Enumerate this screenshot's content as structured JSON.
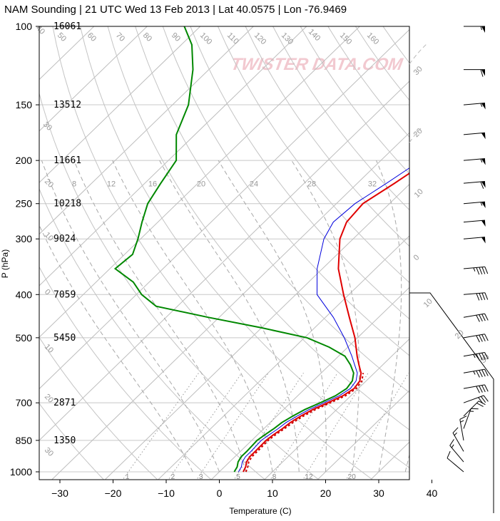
{
  "chart_data": {
    "type": "line",
    "title": "NAM Sounding | 21 UTC Wed 13 Feb 2013 | Lat 40.0575 | Lon -76.9469",
    "xlabel": "Temperature (C)",
    "ylabel": "P (hPa)",
    "xlim": [
      -34,
      40
    ],
    "x_ticks": [
      -30,
      -20,
      -10,
      0,
      10,
      20,
      30,
      40
    ],
    "y_scale": "log",
    "ylim": [
      1050,
      100
    ],
    "pressure_levels": [
      100,
      150,
      200,
      250,
      300,
      400,
      500,
      700,
      850,
      1000
    ],
    "height_labels": [
      "16061",
      "13512",
      "11661",
      "10218",
      "9024",
      "7059",
      "5450",
      "2871",
      "1350"
    ],
    "height_levels": [
      100,
      150,
      200,
      250,
      300,
      400,
      500,
      700,
      850
    ],
    "isotherm_labels": [
      {
        "t": 40,
        "text": "40"
      },
      {
        "t": 30,
        "text": "30"
      },
      {
        "t": 20,
        "text": "20"
      },
      {
        "t": 10,
        "text": "10"
      },
      {
        "t": 0,
        "text": "0"
      },
      {
        "t": -10,
        "text": "10"
      },
      {
        "t": -20,
        "text": "20"
      },
      {
        "t": -30,
        "text": "30"
      },
      {
        "t": 50,
        "text": "50"
      },
      {
        "t": 60,
        "text": "60"
      },
      {
        "t": 70,
        "text": "70"
      },
      {
        "t": 80,
        "text": "80"
      },
      {
        "t": 90,
        "text": "90"
      },
      {
        "t": 100,
        "text": "100"
      },
      {
        "t": 110,
        "text": "110"
      },
      {
        "t": 120,
        "text": "120"
      },
      {
        "t": 130,
        "text": "130"
      },
      {
        "t": 140,
        "text": "140"
      },
      {
        "t": 150,
        "text": "150"
      },
      {
        "t": 160,
        "text": "160"
      }
    ],
    "mixing_ratio_labels": [
      "1",
      "2",
      "3",
      "5",
      "8",
      "12",
      "20"
    ],
    "theta_e_labels": [
      "8",
      "12",
      "16",
      "20",
      "24",
      "28",
      "32"
    ],
    "watermark": "TWISTER DATA.COM",
    "series": [
      {
        "name": "temperature",
        "color": "#e00000",
        "points": [
          [
            1000,
            4.5
          ],
          [
            975,
            4.0
          ],
          [
            950,
            3.2
          ],
          [
            925,
            2.8
          ],
          [
            900,
            2.8
          ],
          [
            850,
            2.7
          ],
          [
            825,
            3.0
          ],
          [
            800,
            3.5
          ],
          [
            775,
            3.8
          ],
          [
            750,
            4.5
          ],
          [
            725,
            5.5
          ],
          [
            700,
            7.0
          ],
          [
            675,
            8.5
          ],
          [
            650,
            9.2
          ],
          [
            625,
            8.8
          ],
          [
            600,
            7.5
          ],
          [
            575,
            5.5
          ],
          [
            550,
            3.5
          ],
          [
            500,
            -0.5
          ],
          [
            450,
            -5.5
          ],
          [
            400,
            -11.0
          ],
          [
            350,
            -17.0
          ],
          [
            300,
            -22.5
          ],
          [
            275,
            -24.5
          ],
          [
            250,
            -25.0
          ],
          [
            225,
            -23.0
          ],
          [
            200,
            -21.0
          ],
          [
            175,
            -21.0
          ],
          [
            160,
            -21.5
          ],
          [
            150,
            -22.5
          ],
          [
            125,
            -25.5
          ],
          [
            110,
            -26.5
          ],
          [
            100,
            -27.0
          ]
        ]
      },
      {
        "name": "virtual_temperature",
        "color": "#cc0000",
        "dashed": true,
        "points": [
          [
            1000,
            5.0
          ],
          [
            975,
            4.4
          ],
          [
            950,
            3.6
          ],
          [
            925,
            3.2
          ],
          [
            900,
            3.2
          ],
          [
            850,
            3.1
          ],
          [
            825,
            3.4
          ],
          [
            800,
            3.9
          ],
          [
            775,
            4.3
          ],
          [
            750,
            5.0
          ],
          [
            725,
            6.0
          ],
          [
            700,
            7.5
          ],
          [
            675,
            9.0
          ],
          [
            650,
            9.6
          ],
          [
            625,
            9.2
          ],
          [
            600,
            7.9
          ]
        ]
      },
      {
        "name": "wet_bulb",
        "color": "#0000dd",
        "points": [
          [
            1000,
            3.6
          ],
          [
            975,
            3.2
          ],
          [
            950,
            2.4
          ],
          [
            925,
            2.0
          ],
          [
            900,
            2.0
          ],
          [
            850,
            1.8
          ],
          [
            825,
            2.2
          ],
          [
            800,
            2.7
          ],
          [
            775,
            3.0
          ],
          [
            750,
            3.8
          ],
          [
            725,
            4.8
          ],
          [
            700,
            6.3
          ],
          [
            675,
            7.8
          ],
          [
            650,
            8.5
          ],
          [
            625,
            8.1
          ],
          [
            600,
            6.8
          ],
          [
            575,
            4.7
          ],
          [
            550,
            2.5
          ],
          [
            500,
            -2.5
          ],
          [
            450,
            -8.5
          ],
          [
            400,
            -16.0
          ],
          [
            350,
            -21.0
          ],
          [
            300,
            -25.5
          ],
          [
            275,
            -27.0
          ],
          [
            250,
            -26.5
          ],
          [
            225,
            -24.5
          ],
          [
            200,
            -22.5
          ],
          [
            175,
            -22.0
          ],
          [
            160,
            -23.0
          ],
          [
            150,
            -24.0
          ],
          [
            125,
            -27.0
          ],
          [
            110,
            -28.0
          ],
          [
            100,
            -29.0
          ]
        ]
      },
      {
        "name": "dewpoint",
        "color": "#008800",
        "points": [
          [
            1000,
            2.8
          ],
          [
            975,
            2.4
          ],
          [
            950,
            1.6
          ],
          [
            925,
            1.2
          ],
          [
            900,
            1.2
          ],
          [
            850,
            1.0
          ],
          [
            825,
            1.4
          ],
          [
            800,
            1.9
          ],
          [
            775,
            2.2
          ],
          [
            750,
            3.0
          ],
          [
            725,
            4.0
          ],
          [
            700,
            5.6
          ],
          [
            675,
            7.1
          ],
          [
            650,
            7.8
          ],
          [
            625,
            7.4
          ],
          [
            600,
            6.1
          ],
          [
            575,
            3.9
          ],
          [
            550,
            1.2
          ],
          [
            525,
            -3.5
          ],
          [
            500,
            -9.5
          ],
          [
            475,
            -20.0
          ],
          [
            450,
            -32.0
          ],
          [
            425,
            -44.0
          ],
          [
            400,
            -49.0
          ],
          [
            375,
            -53.0
          ],
          [
            350,
            -59.0
          ],
          [
            325,
            -58.5
          ],
          [
            300,
            -60.5
          ],
          [
            275,
            -63.0
          ],
          [
            250,
            -65.5
          ],
          [
            225,
            -67.0
          ],
          [
            200,
            -68.5
          ],
          [
            175,
            -73.5
          ],
          [
            150,
            -77.0
          ],
          [
            125,
            -83.0
          ],
          [
            110,
            -88.0
          ],
          [
            100,
            -93.0
          ]
        ]
      }
    ],
    "wind_barbs": [
      {
        "p": 100,
        "dir": 270,
        "kt": 55
      },
      {
        "p": 125,
        "dir": 270,
        "kt": 60
      },
      {
        "p": 150,
        "dir": 265,
        "kt": 55
      },
      {
        "p": 175,
        "dir": 265,
        "kt": 50
      },
      {
        "p": 200,
        "dir": 265,
        "kt": 55
      },
      {
        "p": 225,
        "dir": 265,
        "kt": 60
      },
      {
        "p": 250,
        "dir": 265,
        "kt": 55
      },
      {
        "p": 275,
        "dir": 265,
        "kt": 50
      },
      {
        "p": 300,
        "dir": 265,
        "kt": 50
      },
      {
        "p": 350,
        "dir": 265,
        "kt": 45
      },
      {
        "p": 400,
        "dir": 265,
        "kt": 40
      },
      {
        "p": 450,
        "dir": 260,
        "kt": 40
      },
      {
        "p": 500,
        "dir": 260,
        "kt": 40
      },
      {
        "p": 550,
        "dir": 260,
        "kt": 45
      },
      {
        "p": 600,
        "dir": 260,
        "kt": 45
      },
      {
        "p": 650,
        "dir": 260,
        "kt": 40
      },
      {
        "p": 700,
        "dir": 250,
        "kt": 30
      },
      {
        "p": 750,
        "dir": 225,
        "kt": 20
      },
      {
        "p": 800,
        "dir": 200,
        "kt": 15
      },
      {
        "p": 850,
        "dir": 170,
        "kt": 15
      },
      {
        "p": 900,
        "dir": 150,
        "kt": 15
      },
      {
        "p": 950,
        "dir": 140,
        "kt": 15
      },
      {
        "p": 1000,
        "dir": 130,
        "kt": 10
      }
    ],
    "hodograph_rings": [
      "0",
      "10",
      "20",
      "30"
    ],
    "colors": {
      "temperature": "#e00000",
      "dewpoint": "#008800",
      "wet_bulb": "#0000dd",
      "grid": "#bbbbbb",
      "background": "#ffffff"
    }
  }
}
